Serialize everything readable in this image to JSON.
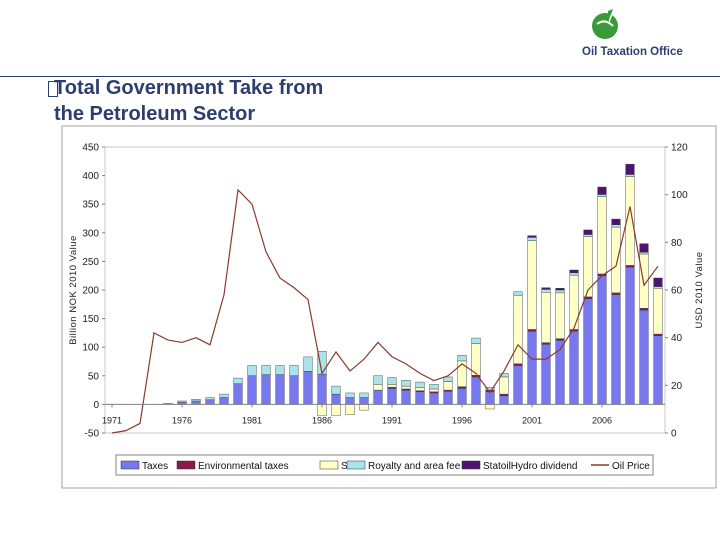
{
  "header": {
    "logo_text": "Oil Taxation Office",
    "title_line1": "Total Government Take from",
    "title_line2": "the Petroleum Sector"
  },
  "colors": {
    "taxes": "#7878ee",
    "environmental_taxes": "#8b1a4a",
    "sdfi": "#ffffc8",
    "royalty": "#aae4ea",
    "statoilhydro": "#4e1470",
    "oil_price": "#8b3a2e",
    "title": "#2c3e6e"
  },
  "chart_data": {
    "type": "bar",
    "stacked": true,
    "years": [
      1971,
      1972,
      1973,
      1974,
      1975,
      1976,
      1977,
      1978,
      1979,
      1980,
      1981,
      1982,
      1983,
      1984,
      1985,
      1986,
      1987,
      1988,
      1989,
      1990,
      1991,
      1992,
      1993,
      1994,
      1995,
      1996,
      1997,
      1998,
      1999,
      2000,
      2001,
      2002,
      2003,
      2004,
      2005,
      2006,
      2007,
      2008,
      2009,
      2010
    ],
    "series": [
      {
        "name": "Taxes",
        "key": "taxes",
        "values": [
          0,
          0,
          0,
          0,
          0,
          4,
          6,
          8,
          12,
          36,
          50,
          52,
          52,
          50,
          58,
          53,
          18,
          12,
          12,
          25,
          28,
          25,
          22,
          20,
          23,
          28,
          48,
          22,
          15,
          68,
          128,
          105,
          112,
          128,
          185,
          225,
          192,
          240,
          165,
          120
        ]
      },
      {
        "name": "Environmental taxes",
        "key": "environmental_taxes",
        "values": [
          0,
          0,
          0,
          0,
          0,
          0,
          0,
          0,
          0,
          0,
          0,
          0,
          0,
          0,
          0,
          0,
          0,
          0,
          0,
          0,
          2,
          2,
          2,
          2,
          2,
          3,
          3,
          3,
          3,
          3,
          3,
          3,
          3,
          3,
          3,
          3,
          3,
          3,
          3,
          3
        ]
      },
      {
        "name": "SDFI",
        "key": "sdfi",
        "values": [
          0,
          0,
          0,
          0,
          0,
          0,
          0,
          0,
          0,
          0,
          0,
          0,
          0,
          0,
          0,
          -20,
          -20,
          -18,
          -10,
          10,
          5,
          5,
          5,
          5,
          15,
          45,
          55,
          -8,
          30,
          120,
          155,
          88,
          80,
          95,
          105,
          135,
          115,
          155,
          95,
          80
        ]
      },
      {
        "name": "Royalty and area fee",
        "key": "royalty",
        "values": [
          0,
          0,
          0,
          0,
          2,
          2,
          3,
          4,
          6,
          10,
          18,
          16,
          16,
          18,
          25,
          40,
          14,
          8,
          8,
          15,
          12,
          10,
          10,
          8,
          8,
          10,
          10,
          5,
          6,
          6,
          6,
          5,
          5,
          4,
          4,
          4,
          4,
          4,
          3,
          3
        ]
      },
      {
        "name": "StatoilHydro dividend",
        "key": "statoilhydro",
        "values": [
          0,
          0,
          0,
          0,
          0,
          0,
          0,
          0,
          0,
          0,
          0,
          0,
          0,
          0,
          0,
          0,
          0,
          0,
          0,
          0,
          0,
          0,
          0,
          0,
          0,
          0,
          0,
          0,
          0,
          0,
          3,
          3,
          3,
          5,
          8,
          13,
          10,
          18,
          15,
          15
        ]
      }
    ],
    "oil_price": {
      "name": "Oil Price",
      "axis": "right",
      "values": [
        0,
        1,
        4,
        42,
        39,
        38,
        40,
        37,
        58,
        102,
        96,
        76,
        65,
        61,
        56,
        25,
        34,
        26,
        31,
        38,
        32,
        29,
        25,
        22,
        24,
        29,
        25,
        17,
        26,
        37,
        31,
        31,
        35,
        44,
        60,
        66,
        70,
        95,
        62,
        70
      ]
    },
    "y_left": {
      "label": "Billion NOK 2010 Value",
      "min": -50,
      "max": 450,
      "ticks": [
        -50,
        0,
        50,
        100,
        150,
        200,
        250,
        300,
        350,
        400,
        450
      ]
    },
    "y_right": {
      "label": "USD 2010 Value",
      "min": 0,
      "max": 120,
      "ticks": [
        0,
        20,
        40,
        60,
        80,
        100,
        120
      ]
    },
    "x_ticks": [
      "1971",
      "1976",
      "1981",
      "1986",
      "1991",
      "1996",
      "2001",
      "2006"
    ],
    "legend": [
      "Taxes",
      "Environmental taxes",
      "SDFI",
      "Royalty and area fee",
      "StatoilHydro dividend",
      "Oil Price"
    ],
    "legend_position": "bottom",
    "grid": false
  }
}
